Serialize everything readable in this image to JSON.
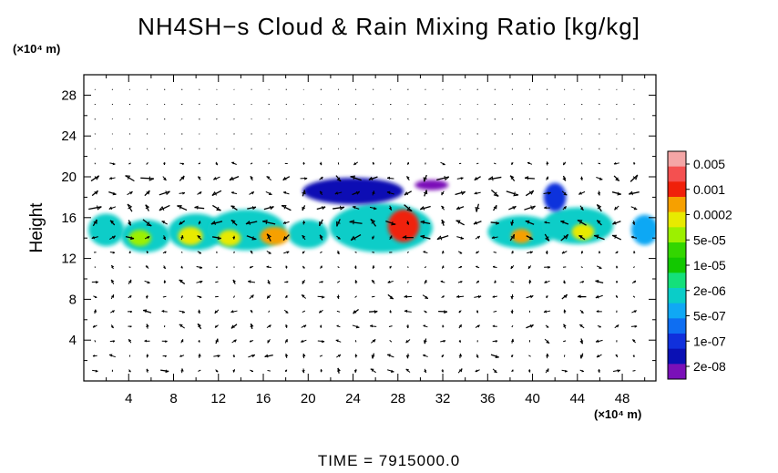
{
  "chart_data": {
    "type": "heatmap",
    "title": "NH4SH−s Cloud & Rain Mixing Ratio [kg/kg]",
    "xlabel": "",
    "ylabel": "Height",
    "x_unit": "(×10⁴ m)",
    "y_unit": "(×10⁴ m)",
    "xlim": [
      0,
      51
    ],
    "ylim": [
      0,
      30
    ],
    "x_ticks": [
      4,
      8,
      12,
      16,
      20,
      24,
      28,
      32,
      36,
      40,
      44,
      48
    ],
    "y_ticks": [
      4,
      8,
      12,
      16,
      20,
      24,
      28
    ],
    "colorbar": {
      "labels": [
        "0.005",
        "0.001",
        "0.0002",
        "5e-05",
        "1e-05",
        "2e-06",
        "5e-07",
        "1e-07",
        "2e-08"
      ],
      "colors": [
        "#f4a6a6",
        "#f45050",
        "#f0200a",
        "#f6a000",
        "#e8ea00",
        "#9cf000",
        "#33d600",
        "#12c800",
        "#14e07a",
        "#0acdc8",
        "#10a8f4",
        "#0e6ef2",
        "#1030dc",
        "#0a10b4",
        "#7a10b8"
      ]
    },
    "regions": [
      {
        "x": 2,
        "y": 14.8,
        "rx": 1.6,
        "ry": 1.6,
        "level": 9
      },
      {
        "x": 5.5,
        "y": 14.2,
        "rx": 2.2,
        "ry": 1.6,
        "level": 9
      },
      {
        "x": 10,
        "y": 14.6,
        "rx": 2.5,
        "ry": 1.8,
        "level": 9
      },
      {
        "x": 14.5,
        "y": 14.8,
        "rx": 3.5,
        "ry": 2.0,
        "level": 9
      },
      {
        "x": 20,
        "y": 14.4,
        "rx": 1.8,
        "ry": 1.4,
        "level": 9
      },
      {
        "x": 26.5,
        "y": 15,
        "rx": 4.6,
        "ry": 2.4,
        "level": 9
      },
      {
        "x": 24,
        "y": 18.6,
        "rx": 4.5,
        "ry": 1.3,
        "level": 13
      },
      {
        "x": 31,
        "y": 19.2,
        "rx": 1.5,
        "ry": 0.5,
        "level": 14
      },
      {
        "x": 39,
        "y": 14.6,
        "rx": 3.0,
        "ry": 1.6,
        "level": 9
      },
      {
        "x": 44,
        "y": 15.2,
        "rx": 3.2,
        "ry": 1.8,
        "level": 9
      },
      {
        "x": 42,
        "y": 18,
        "rx": 1.0,
        "ry": 1.4,
        "level": 12
      },
      {
        "x": 50,
        "y": 14.8,
        "rx": 1.2,
        "ry": 1.5,
        "level": 10
      },
      {
        "x": 5,
        "y": 14,
        "rx": 1.0,
        "ry": 0.8,
        "level": 5
      },
      {
        "x": 9.5,
        "y": 14.2,
        "rx": 1.1,
        "ry": 0.9,
        "level": 4
      },
      {
        "x": 13,
        "y": 14,
        "rx": 1.0,
        "ry": 0.8,
        "level": 4
      },
      {
        "x": 17,
        "y": 14.2,
        "rx": 1.3,
        "ry": 0.9,
        "level": 3
      },
      {
        "x": 28.5,
        "y": 15.2,
        "rx": 1.4,
        "ry": 1.6,
        "level": 2
      },
      {
        "x": 39,
        "y": 14.2,
        "rx": 0.9,
        "ry": 0.7,
        "level": 3
      },
      {
        "x": 44.5,
        "y": 14.6,
        "rx": 1.0,
        "ry": 0.8,
        "level": 4
      }
    ],
    "time_label": "TIME  =  7915000.0"
  }
}
